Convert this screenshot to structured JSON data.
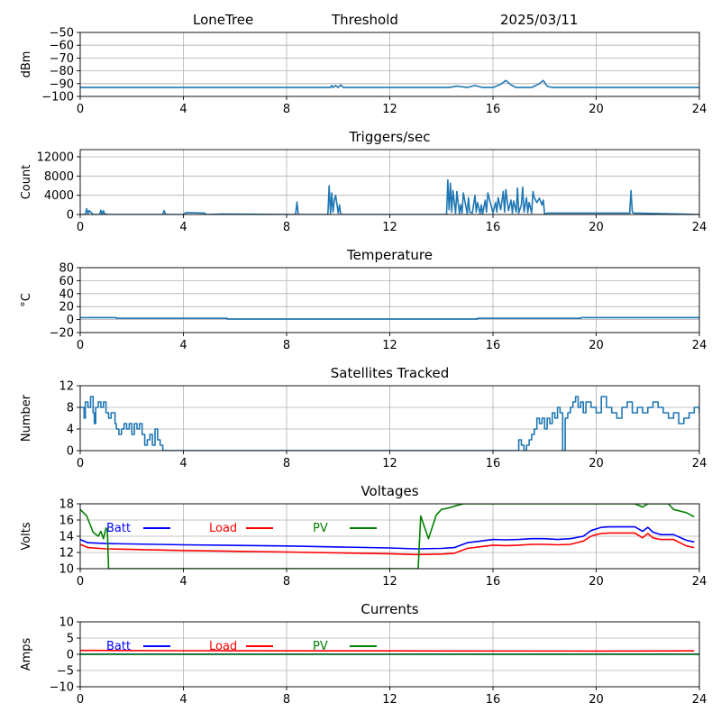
{
  "header": {
    "station": "LoneTree",
    "mode": "Threshold",
    "date": "2025/03/11"
  },
  "chart_data": [
    {
      "id": "rssi",
      "type": "line",
      "title": "",
      "ylabel": "dBm",
      "xlim": [
        0,
        24
      ],
      "xticks": [
        0,
        4,
        8,
        12,
        16,
        20,
        24
      ],
      "ylim": [
        -100,
        -50
      ],
      "yticks": [
        -100,
        -90,
        -80,
        -70,
        -60,
        -50
      ],
      "ytick_labels": [
        "−100",
        "−90",
        "−80",
        "−70",
        "−60",
        "−50"
      ],
      "grid": true,
      "step": false,
      "series": [
        {
          "color": "#1f77b4",
          "x": [
            0,
            9.7,
            9.75,
            9.8,
            9.9,
            10.0,
            10.1,
            10.2,
            14.3,
            14.6,
            15.0,
            15.3,
            15.6,
            16.0,
            16.3,
            16.5,
            16.7,
            16.9,
            17.5,
            17.8,
            17.95,
            18.1,
            18.3,
            24
          ],
          "y": [
            -93,
            -93,
            -91.5,
            -93,
            -91.5,
            -93,
            -91,
            -93,
            -93,
            -92,
            -93,
            -91.5,
            -93,
            -93,
            -90.5,
            -87.5,
            -91,
            -93,
            -93,
            -90,
            -87.5,
            -92,
            -93,
            -93
          ]
        }
      ]
    },
    {
      "id": "triggers",
      "type": "line",
      "title": "Triggers/sec",
      "ylabel": "Count",
      "xlim": [
        0,
        24
      ],
      "xticks": [
        0,
        4,
        8,
        12,
        16,
        20,
        24
      ],
      "ylim": [
        0,
        13500
      ],
      "yticks": [
        0,
        4000,
        8000,
        12000
      ],
      "ytick_labels": [
        "0",
        "4000",
        "8000",
        "12000"
      ],
      "grid": true,
      "step": false,
      "series": [
        {
          "color": "#1f77b4",
          "x": [
            0,
            0.2,
            0.25,
            0.3,
            0.35,
            0.5,
            0.75,
            0.8,
            0.85,
            0.9,
            0.95,
            1.0,
            1.05,
            3.2,
            3.25,
            3.3,
            3.4,
            4.0,
            4.1,
            4.8,
            4.9,
            5.5,
            8.35,
            8.4,
            8.45,
            9.6,
            9.65,
            9.7,
            9.75,
            9.8,
            9.85,
            9.9,
            10.0,
            10.05,
            10.1,
            14.2,
            14.25,
            14.3,
            14.35,
            14.4,
            14.45,
            14.55,
            14.6,
            14.7,
            14.75,
            14.8,
            14.85,
            15.0,
            15.05,
            15.1,
            15.2,
            15.3,
            15.35,
            15.4,
            15.5,
            15.55,
            15.6,
            15.7,
            15.75,
            15.8,
            16.0,
            16.1,
            16.15,
            16.2,
            16.3,
            16.4,
            16.45,
            16.5,
            16.6,
            16.7,
            16.75,
            16.8,
            16.9,
            16.95,
            17.0,
            17.1,
            17.15,
            17.2,
            17.3,
            17.35,
            17.4,
            17.5,
            17.55,
            17.6,
            17.7,
            17.8,
            17.9,
            17.95,
            18.0,
            18.1,
            21.3,
            21.35,
            21.4,
            21.45,
            21.5,
            24
          ],
          "y": [
            0,
            0,
            1200,
            200,
            800,
            0,
            0,
            900,
            0,
            800,
            0,
            100,
            0,
            0,
            800,
            100,
            0,
            0,
            400,
            300,
            0,
            100,
            0,
            2600,
            0,
            0,
            6000,
            200,
            4500,
            500,
            3000,
            4000,
            300,
            2000,
            0,
            0,
            7200,
            1000,
            6500,
            500,
            5000,
            300,
            4800,
            200,
            2000,
            300,
            4500,
            200,
            3500,
            500,
            300,
            4000,
            500,
            2500,
            200,
            2000,
            100,
            3000,
            500,
            4500,
            300,
            2500,
            500,
            3500,
            1000,
            4800,
            500,
            5200,
            800,
            3000,
            300,
            2800,
            500,
            5500,
            300,
            2000,
            5700,
            500,
            3500,
            400,
            2500,
            300,
            4800,
            3500,
            2500,
            3400,
            2000,
            3000,
            0,
            300,
            300,
            5000,
            500,
            300,
            300,
            0
          ]
        }
      ]
    },
    {
      "id": "temperature",
      "type": "line",
      "title": "Temperature",
      "ylabel": "°C",
      "xlim": [
        0,
        24
      ],
      "xticks": [
        0,
        4,
        8,
        12,
        16,
        20,
        24
      ],
      "ylim": [
        -20,
        80
      ],
      "yticks": [
        -20,
        0,
        20,
        40,
        60,
        80
      ],
      "ytick_labels": [
        "−20",
        "0",
        "20",
        "40",
        "60",
        "80"
      ],
      "grid": true,
      "step": true,
      "series": [
        {
          "color": "#1f77b4",
          "x": [
            0,
            1.4,
            5.7,
            15.4,
            19.4,
            24
          ],
          "y": [
            3,
            2,
            1,
            2,
            3,
            3
          ]
        }
      ]
    },
    {
      "id": "satellites",
      "type": "line",
      "title": "Satellites Tracked",
      "ylabel": "Number",
      "xlim": [
        0,
        24
      ],
      "xticks": [
        0,
        4,
        8,
        12,
        16,
        20,
        24
      ],
      "ylim": [
        0,
        12
      ],
      "yticks": [
        0,
        4,
        8,
        12
      ],
      "ytick_labels": [
        "0",
        "4",
        "8",
        "12"
      ],
      "grid": true,
      "step": true,
      "series": [
        {
          "color": "#1f77b4",
          "x": [
            0,
            0.15,
            0.2,
            0.3,
            0.4,
            0.5,
            0.55,
            0.6,
            0.7,
            0.8,
            0.9,
            1.0,
            1.1,
            1.2,
            1.35,
            1.4,
            1.5,
            1.6,
            1.7,
            1.8,
            1.9,
            2.0,
            2.1,
            2.2,
            2.3,
            2.4,
            2.5,
            2.6,
            2.7,
            2.8,
            2.9,
            3.0,
            3.1,
            3.2,
            3.3,
            3.4,
            16.9,
            17.0,
            17.1,
            17.2,
            17.3,
            17.4,
            17.5,
            17.6,
            17.7,
            17.8,
            17.9,
            18.0,
            18.1,
            18.2,
            18.3,
            18.4,
            18.5,
            18.6,
            18.7,
            18.8,
            18.9,
            19.0,
            19.1,
            19.2,
            19.3,
            19.4,
            19.5,
            19.6,
            19.8,
            20.0,
            20.2,
            20.4,
            20.6,
            20.8,
            21.0,
            21.2,
            21.4,
            21.6,
            21.8,
            22.0,
            22.2,
            22.4,
            22.6,
            22.8,
            23.0,
            23.2,
            23.4,
            23.6,
            23.8,
            24
          ],
          "y": [
            8,
            6,
            9,
            8,
            10,
            7,
            5,
            8,
            9,
            8,
            9,
            7,
            6,
            7,
            5,
            4,
            3,
            4,
            5,
            4,
            5,
            3,
            5,
            4,
            5,
            3,
            1,
            2,
            3,
            1,
            4,
            2,
            1,
            0,
            0,
            0,
            0,
            2,
            1,
            0,
            1,
            2,
            3,
            4,
            6,
            5,
            6,
            4,
            6,
            5,
            7,
            6,
            8,
            7,
            0,
            6,
            7,
            8,
            9,
            10,
            8,
            9,
            7,
            9,
            8,
            7,
            10,
            8,
            7,
            6,
            8,
            9,
            7,
            8,
            7,
            8,
            9,
            8,
            7,
            6,
            7,
            5,
            6,
            7,
            8,
            7
          ]
        }
      ]
    },
    {
      "id": "voltages",
      "type": "line",
      "title": "Voltages",
      "ylabel": "Volts",
      "xlim": [
        0,
        24
      ],
      "xticks": [
        0,
        4,
        8,
        12,
        16,
        20,
        24
      ],
      "ylim": [
        10,
        18
      ],
      "yticks": [
        10,
        12,
        14,
        16,
        18
      ],
      "ytick_labels": [
        "10",
        "12",
        "14",
        "16",
        "18"
      ],
      "grid": true,
      "step": false,
      "series": [
        {
          "name": "Batt",
          "color": "#0000ff",
          "x": [
            0,
            0.3,
            1.0,
            4.0,
            8.0,
            12.0,
            13.0,
            14.0,
            14.5,
            15.0,
            15.5,
            16.0,
            16.5,
            17.0,
            17.5,
            18.0,
            18.5,
            19.0,
            19.5,
            19.8,
            20.0,
            20.2,
            20.5,
            21.0,
            21.5,
            21.8,
            22.0,
            22.2,
            22.5,
            23.0,
            23.5,
            23.8
          ],
          "y": [
            13.6,
            13.2,
            13.1,
            12.95,
            12.8,
            12.55,
            12.45,
            12.5,
            12.6,
            13.2,
            13.4,
            13.6,
            13.55,
            13.6,
            13.7,
            13.7,
            13.6,
            13.7,
            14.0,
            14.7,
            14.9,
            15.1,
            15.15,
            15.15,
            15.15,
            14.6,
            15.1,
            14.5,
            14.2,
            14.2,
            13.5,
            13.3
          ]
        },
        {
          "name": "Load",
          "color": "#ff0000",
          "x": [
            0,
            0.3,
            1.0,
            4.0,
            8.0,
            12.0,
            13.0,
            14.0,
            14.5,
            15.0,
            15.5,
            16.0,
            16.5,
            17.0,
            17.5,
            18.0,
            18.5,
            19.0,
            19.5,
            19.8,
            20.0,
            20.2,
            20.5,
            21.0,
            21.5,
            21.8,
            22.0,
            22.2,
            22.5,
            23.0,
            23.5,
            23.8
          ],
          "y": [
            13.0,
            12.6,
            12.45,
            12.25,
            12.05,
            11.85,
            11.75,
            11.8,
            11.9,
            12.5,
            12.7,
            12.9,
            12.85,
            12.9,
            13.0,
            13.0,
            12.95,
            13.0,
            13.4,
            14.0,
            14.2,
            14.35,
            14.4,
            14.4,
            14.4,
            13.8,
            14.35,
            13.8,
            13.6,
            13.6,
            12.8,
            12.6
          ]
        },
        {
          "name": "PV",
          "color": "#008000",
          "x": [
            0,
            0.25,
            0.5,
            0.7,
            0.8,
            0.9,
            1.0,
            1.05,
            1.1,
            13.1,
            13.2,
            13.5,
            13.8,
            14.0,
            14.3,
            14.6,
            14.85,
            19.5,
            20.0,
            21.5,
            21.8,
            22.0,
            22.5,
            22.8,
            23.0,
            23.5,
            23.8
          ],
          "y": [
            17.3,
            16.5,
            14.5,
            14.0,
            14.6,
            13.7,
            15.0,
            14.8,
            10.0,
            10.0,
            16.5,
            13.7,
            16.6,
            17.3,
            17.5,
            17.8,
            18.0,
            18.0,
            18.0,
            18.0,
            17.6,
            18.0,
            18.0,
            18.0,
            17.3,
            16.9,
            16.4
          ]
        }
      ],
      "legend": [
        "Batt",
        "Load",
        "PV"
      ]
    },
    {
      "id": "currents",
      "type": "line",
      "title": "Currents",
      "ylabel": "Amps",
      "xlim": [
        0,
        24
      ],
      "xticks": [
        0,
        4,
        8,
        12,
        16,
        20,
        24
      ],
      "ylim": [
        -10,
        10
      ],
      "yticks": [
        -10,
        -5,
        0,
        5,
        10
      ],
      "ytick_labels": [
        "−10",
        "−5",
        "0",
        "5",
        "10"
      ],
      "grid": true,
      "step": false,
      "series": [
        {
          "name": "Batt",
          "color": "#0000ff",
          "x": [
            0,
            24
          ],
          "y": [
            0.05,
            0.05
          ]
        },
        {
          "name": "Load",
          "color": "#ff0000",
          "x": [
            0,
            0.5,
            4,
            12,
            20,
            23.8
          ],
          "y": [
            1.2,
            1.2,
            1.1,
            1.05,
            1.0,
            1.05
          ]
        },
        {
          "name": "PV",
          "color": "#008000",
          "x": [
            0,
            24
          ],
          "y": [
            0.0,
            0.0
          ]
        }
      ],
      "legend": [
        "Batt",
        "Load",
        "PV"
      ]
    }
  ]
}
